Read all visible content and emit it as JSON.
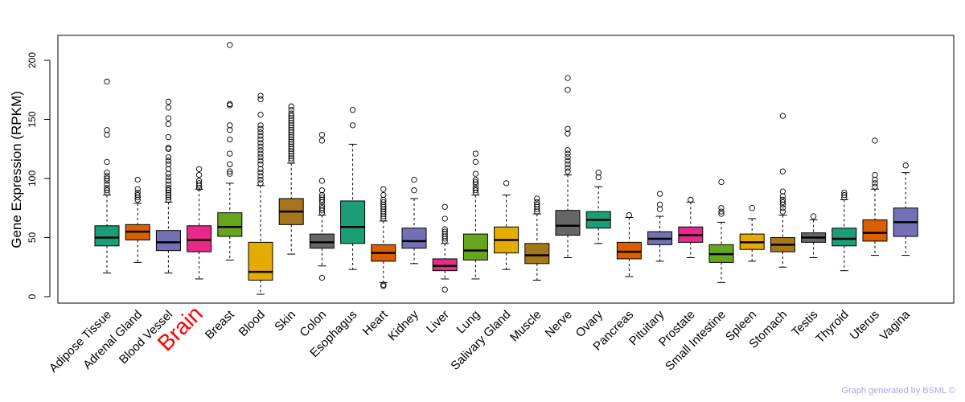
{
  "chart_data": {
    "type": "box",
    "title": "",
    "xlabel": "",
    "ylabel": "Gene Expression (RPKM)",
    "ylim": [
      -6,
      223
    ],
    "yticks": [
      0,
      50,
      100,
      150,
      200
    ],
    "highlight": "Brain",
    "highlight_color": "#ff0000",
    "categories": [
      {
        "name": "Adipose Tissue",
        "color": "#1b9e77",
        "q1": 43,
        "median": 50,
        "q3": 60,
        "whisker_low": 20,
        "whisker_high": 86,
        "outliers": [
          88,
          90,
          92,
          95,
          98,
          100,
          102,
          105,
          114,
          137,
          141,
          182
        ]
      },
      {
        "name": "Adrenal Gland",
        "color": "#d95f02",
        "q1": 48,
        "median": 55,
        "q3": 61,
        "whisker_low": 29,
        "whisker_high": 79,
        "outliers": [
          82,
          84,
          86,
          88,
          91,
          99
        ]
      },
      {
        "name": "Blood Vessel",
        "color": "#7570b3",
        "q1": 39,
        "median": 46,
        "q3": 56,
        "whisker_low": 20,
        "whisker_high": 80,
        "outliers": [
          82,
          84,
          86,
          88,
          90,
          92,
          95,
          98,
          101,
          104,
          108,
          112,
          115,
          118,
          125,
          126,
          135,
          146,
          151,
          160,
          165
        ]
      },
      {
        "name": "Brain",
        "color": "#e7298a",
        "q1": 38,
        "median": 48,
        "q3": 60,
        "whisker_low": 15,
        "whisker_high": 91,
        "outliers": [
          92,
          94,
          96,
          98,
          103,
          108
        ]
      },
      {
        "name": "Breast",
        "color": "#66a61e",
        "q1": 51,
        "median": 59,
        "q3": 71,
        "whisker_low": 31,
        "whisker_high": 96,
        "outliers": [
          104,
          106,
          112,
          121,
          133,
          141,
          145,
          162,
          163,
          213
        ]
      },
      {
        "name": "Blood",
        "color": "#e6ab02",
        "q1": 14,
        "median": 21,
        "q3": 46,
        "whisker_low": 2,
        "whisker_high": 94,
        "outliers": [
          96,
          99,
          102,
          105,
          108,
          112,
          115,
          118,
          121,
          124,
          127,
          130,
          133,
          136,
          139,
          142,
          145,
          154,
          167,
          170
        ]
      },
      {
        "name": "Skin",
        "color": "#a6761d",
        "q1": 61,
        "median": 72,
        "q3": 83,
        "whisker_low": 36,
        "whisker_high": 113,
        "outliers": [
          115,
          117,
          119,
          121,
          123,
          125,
          127,
          129,
          131,
          133,
          135,
          137,
          139,
          141,
          143,
          145,
          147,
          149,
          151,
          153,
          155,
          158,
          161
        ]
      },
      {
        "name": "Colon",
        "color": "#666666",
        "q1": 41,
        "median": 46,
        "q3": 53,
        "whisker_low": 26,
        "whisker_high": 69,
        "outliers": [
          16,
          71,
          73,
          75,
          77,
          80,
          82,
          84,
          86,
          90,
          98,
          132,
          137
        ]
      },
      {
        "name": "Esophagus",
        "color": "#1b9e77",
        "q1": 45,
        "median": 59,
        "q3": 81,
        "whisker_low": 23,
        "whisker_high": 129,
        "outliers": [
          145,
          158
        ]
      },
      {
        "name": "Heart",
        "color": "#d95f02",
        "q1": 30,
        "median": 37,
        "q3": 44,
        "whisker_low": 12,
        "whisker_high": 64,
        "outliers": [
          9,
          10,
          66,
          68,
          70,
          72,
          74,
          76,
          78,
          80,
          82,
          86,
          91
        ]
      },
      {
        "name": "Kidney",
        "color": "#7570b3",
        "q1": 41,
        "median": 47,
        "q3": 58,
        "whisker_low": 28,
        "whisker_high": 83,
        "outliers": [
          90,
          99
        ]
      },
      {
        "name": "Liver",
        "color": "#e7298a",
        "q1": 22,
        "median": 26,
        "q3": 32,
        "whisker_low": 15,
        "whisker_high": 45,
        "outliers": [
          6,
          47,
          49,
          51,
          53,
          55,
          57,
          66,
          76
        ]
      },
      {
        "name": "Lung",
        "color": "#66a61e",
        "q1": 31,
        "median": 39,
        "q3": 53,
        "whisker_low": 15,
        "whisker_high": 86,
        "outliers": [
          88,
          90,
          92,
          95,
          97,
          99,
          104,
          114,
          121
        ]
      },
      {
        "name": "Salivary Gland",
        "color": "#e6ab02",
        "q1": 37,
        "median": 48,
        "q3": 59,
        "whisker_low": 23,
        "whisker_high": 86,
        "outliers": [
          96
        ]
      },
      {
        "name": "Muscle",
        "color": "#a6761d",
        "q1": 28,
        "median": 35,
        "q3": 45,
        "whisker_low": 14,
        "whisker_high": 70,
        "outliers": [
          72,
          74,
          76,
          78,
          80,
          83
        ]
      },
      {
        "name": "Nerve",
        "color": "#666666",
        "q1": 52,
        "median": 60,
        "q3": 73,
        "whisker_low": 33,
        "whisker_high": 103,
        "outliers": [
          106,
          109,
          112,
          115,
          118,
          121,
          124,
          138,
          142,
          175,
          185
        ]
      },
      {
        "name": "Ovary",
        "color": "#1b9e77",
        "q1": 58,
        "median": 65,
        "q3": 72,
        "whisker_low": 45,
        "whisker_high": 93,
        "outliers": [
          101,
          105
        ]
      },
      {
        "name": "Pancreas",
        "color": "#d95f02",
        "q1": 32,
        "median": 38,
        "q3": 46,
        "whisker_low": 17,
        "whisker_high": 67,
        "outliers": [
          69
        ]
      },
      {
        "name": "Pituitary",
        "color": "#7570b3",
        "q1": 44,
        "median": 49,
        "q3": 55,
        "whisker_low": 30,
        "whisker_high": 68,
        "outliers": [
          74,
          78,
          87
        ]
      },
      {
        "name": "Prostate",
        "color": "#e7298a",
        "q1": 46,
        "median": 52,
        "q3": 59,
        "whisker_low": 33,
        "whisker_high": 80,
        "outliers": [
          82
        ]
      },
      {
        "name": "Small Intestine",
        "color": "#66a61e",
        "q1": 29,
        "median": 36,
        "q3": 44,
        "whisker_low": 12,
        "whisker_high": 63,
        "outliers": [
          70,
          72,
          75,
          97
        ]
      },
      {
        "name": "Spleen",
        "color": "#e6ab02",
        "q1": 40,
        "median": 46,
        "q3": 53,
        "whisker_low": 30,
        "whisker_high": 66,
        "outliers": [
          75
        ]
      },
      {
        "name": "Stomach",
        "color": "#a6761d",
        "q1": 38,
        "median": 44,
        "q3": 50,
        "whisker_low": 25,
        "whisker_high": 69,
        "outliers": [
          72,
          75,
          78,
          80,
          82,
          85,
          89,
          106,
          153
        ]
      },
      {
        "name": "Testis",
        "color": "#666666",
        "q1": 46,
        "median": 50,
        "q3": 54,
        "whisker_low": 33,
        "whisker_high": 65,
        "outliers": [
          68
        ]
      },
      {
        "name": "Thyroid",
        "color": "#1b9e77",
        "q1": 43,
        "median": 49,
        "q3": 58,
        "whisker_low": 22,
        "whisker_high": 82,
        "outliers": [
          84,
          86,
          88
        ]
      },
      {
        "name": "Uterus",
        "color": "#d95f02",
        "q1": 47,
        "median": 54,
        "q3": 65,
        "whisker_low": 35,
        "whisker_high": 91,
        "outliers": [
          93,
          96,
          99,
          103,
          132
        ]
      },
      {
        "name": "Vagina",
        "color": "#7570b3",
        "q1": 51,
        "median": 63,
        "q3": 75,
        "whisker_low": 35,
        "whisker_high": 105,
        "outliers": [
          111
        ]
      }
    ]
  },
  "footer": {
    "credit": "Graph generated by BSML ©"
  }
}
